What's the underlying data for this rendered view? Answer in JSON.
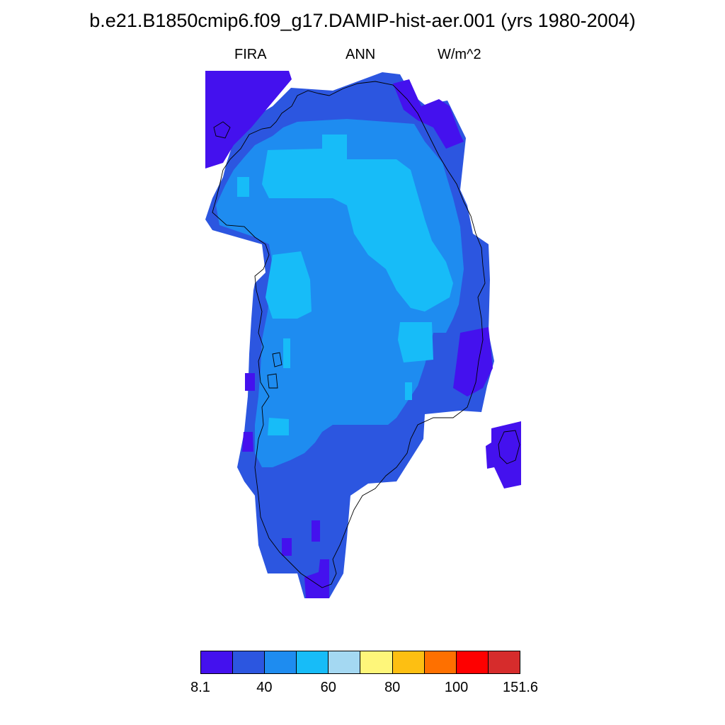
{
  "title": "b.e21.B1850cmip6.f09_g17.DAMIP-hist-aer.001 (yrs 1980-2004)",
  "variable": "FIRA",
  "season": "ANN",
  "units": "W/m^2",
  "colorbar": {
    "colors": [
      "#4411ee",
      "#2c56e0",
      "#1e8cf0",
      "#17bcf8",
      "#a4d8f2",
      "#fef67a",
      "#fdbf12",
      "#fe7000",
      "#fe0000",
      "#d62c2c"
    ],
    "tick_labels": [
      "8.1",
      "40",
      "60",
      "80",
      "100",
      "151.6"
    ],
    "tick_box_index": [
      0,
      2,
      4,
      6,
      8,
      10
    ]
  },
  "map_colors": {
    "c1": "#4411ee",
    "c2": "#2c56e0",
    "c3": "#1e8cf0",
    "c4": "#17bcf8"
  }
}
